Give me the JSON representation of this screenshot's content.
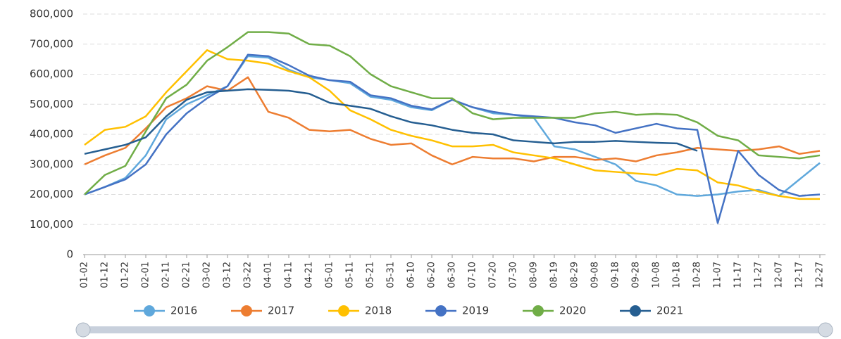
{
  "chart_data": {
    "type": "line",
    "categories": [
      "01-02",
      "01-12",
      "01-22",
      "02-01",
      "02-11",
      "02-21",
      "03-02",
      "03-12",
      "03-22",
      "04-01",
      "04-11",
      "04-21",
      "05-01",
      "05-11",
      "05-21",
      "05-31",
      "06-10",
      "06-20",
      "06-30",
      "07-10",
      "07-20",
      "07-30",
      "08-09",
      "08-19",
      "08-29",
      "09-08",
      "09-18",
      "09-28",
      "10-08",
      "10-18",
      "10-28",
      "11-07",
      "11-17",
      "11-27",
      "12-07",
      "12-17",
      "12-27"
    ],
    "series": [
      {
        "name": "2016",
        "color": "#5fa8dc",
        "values": [
          200000,
          225000,
          255000,
          330000,
          450000,
          500000,
          530000,
          560000,
          660000,
          655000,
          615000,
          590000,
          580000,
          570000,
          525000,
          515000,
          490000,
          480000,
          515000,
          490000,
          470000,
          465000,
          455000,
          360000,
          350000,
          325000,
          300000,
          245000,
          230000,
          200000,
          195000,
          200000,
          210000,
          215000,
          195000,
          250000,
          305000
        ]
      },
      {
        "name": "2017",
        "color": "#ed7d31",
        "values": [
          300000,
          330000,
          355000,
          420000,
          490000,
          520000,
          560000,
          545000,
          590000,
          475000,
          455000,
          415000,
          410000,
          415000,
          385000,
          365000,
          370000,
          330000,
          300000,
          325000,
          320000,
          320000,
          310000,
          325000,
          325000,
          315000,
          320000,
          310000,
          330000,
          340000,
          355000,
          350000,
          345000,
          350000,
          360000,
          335000,
          345000
        ]
      },
      {
        "name": "2018",
        "color": "#ffc000",
        "values": [
          365000,
          415000,
          425000,
          460000,
          540000,
          610000,
          680000,
          650000,
          645000,
          635000,
          610000,
          590000,
          545000,
          480000,
          450000,
          415000,
          395000,
          380000,
          360000,
          360000,
          365000,
          340000,
          330000,
          320000,
          300000,
          280000,
          275000,
          270000,
          265000,
          285000,
          280000,
          240000,
          230000,
          210000,
          195000,
          185000,
          185000
        ]
      },
      {
        "name": "2019",
        "color": "#4472c4",
        "values": [
          200000,
          225000,
          250000,
          300000,
          400000,
          470000,
          520000,
          560000,
          665000,
          660000,
          630000,
          595000,
          580000,
          575000,
          530000,
          520000,
          495000,
          483000,
          515000,
          490000,
          475000,
          465000,
          460000,
          455000,
          440000,
          430000,
          405000,
          420000,
          435000,
          420000,
          415000,
          105000,
          345000,
          265000,
          215000,
          195000,
          200000
        ]
      },
      {
        "name": "2020",
        "color": "#70ad47",
        "values": [
          200000,
          265000,
          295000,
          410000,
          520000,
          565000,
          645000,
          690000,
          740000,
          740000,
          735000,
          700000,
          695000,
          660000,
          600000,
          560000,
          540000,
          520000,
          520000,
          470000,
          450000,
          455000,
          455000,
          455000,
          455000,
          470000,
          475000,
          465000,
          468000,
          465000,
          440000,
          395000,
          380000,
          330000,
          325000,
          320000,
          330000
        ]
      },
      {
        "name": "2021",
        "color": "#255e91",
        "values": [
          335000,
          350000,
          365000,
          390000,
          460000,
          515000,
          540000,
          545000,
          550000,
          548000,
          545000,
          535000,
          505000,
          495000,
          485000,
          460000,
          440000,
          430000,
          415000,
          405000,
          400000,
          380000,
          375000,
          370000,
          375000,
          375000,
          378000,
          375000,
          372000,
          370000,
          345000,
          null,
          null,
          null,
          null,
          null,
          null
        ]
      }
    ],
    "ylim": [
      0,
      800000
    ],
    "yticks": [
      0,
      {
        "value": 100000,
        "label": "100,000"
      },
      {
        "value": 200000,
        "label": "200,000"
      },
      {
        "value": 300000,
        "label": "300,000"
      },
      {
        "value": 400000,
        "label": "400,000"
      },
      {
        "value": 500000,
        "label": "500,000"
      },
      {
        "value": 600000,
        "label": "600,000"
      },
      {
        "value": 700000,
        "label": "700,000"
      },
      {
        "value": 800000,
        "label": "800,000"
      }
    ],
    "grid": true
  }
}
